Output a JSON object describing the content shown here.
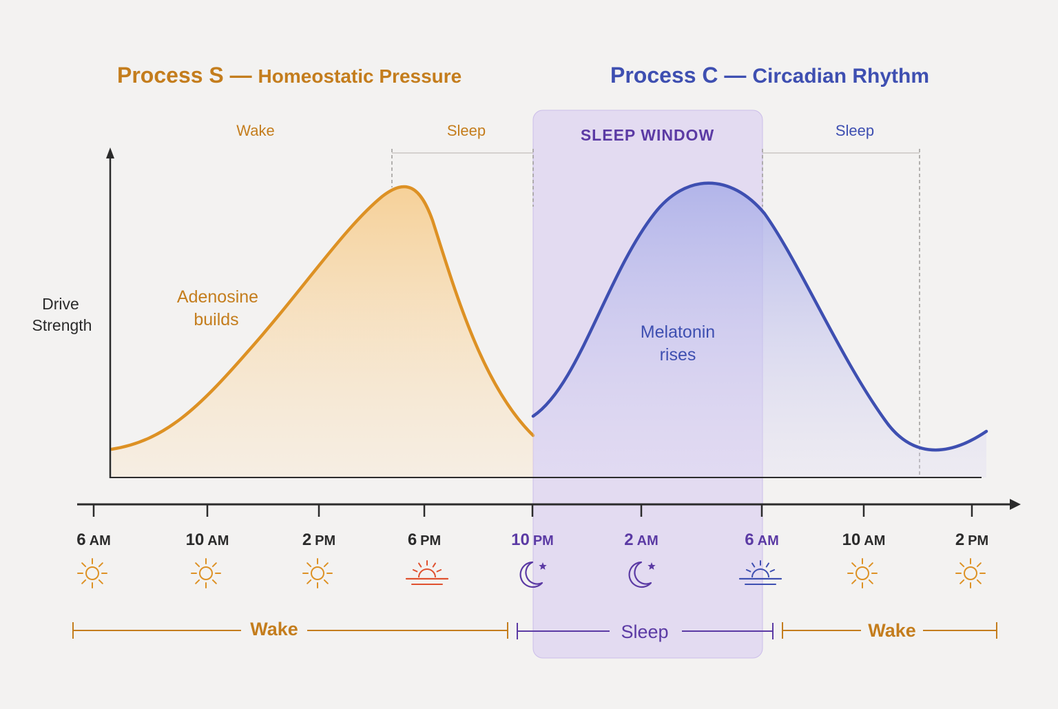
{
  "titles": {
    "process_s": {
      "name": "Process S",
      "dash": "—",
      "subtitle": "Homeostatic Pressure"
    },
    "process_c": {
      "name": "Process C",
      "dash": "—",
      "subtitle": "Circadian Rhythm"
    }
  },
  "axis": {
    "ylabel_line1": "Drive",
    "ylabel_line2": "Strength"
  },
  "top_labels": {
    "wake_s": "Wake",
    "sleep_s": "Sleep",
    "sleep_window": "SLEEP WINDOW",
    "sleep_c": "Sleep"
  },
  "annotations": {
    "adenosine_line1": "Adenosine",
    "adenosine_line2": "builds",
    "melatonin_line1": "Melatonin",
    "melatonin_line2": "rises"
  },
  "timeline": [
    {
      "num": "6",
      "unit": "AM",
      "icon": "sun-icon",
      "tone": "day"
    },
    {
      "num": "10",
      "unit": "AM",
      "icon": "sun-icon",
      "tone": "day"
    },
    {
      "num": "2",
      "unit": "PM",
      "icon": "sun-icon",
      "tone": "day"
    },
    {
      "num": "6",
      "unit": "PM",
      "icon": "sunset-icon",
      "tone": "day"
    },
    {
      "num": "10",
      "unit": "PM",
      "icon": "moon-star-icon",
      "tone": "night"
    },
    {
      "num": "2",
      "unit": "AM",
      "icon": "moon-star-icon",
      "tone": "night"
    },
    {
      "num": "6",
      "unit": "AM",
      "icon": "sunrise-icon",
      "tone": "night"
    },
    {
      "num": "10",
      "unit": "AM",
      "icon": "sun-icon",
      "tone": "day"
    },
    {
      "num": "2",
      "unit": "PM",
      "icon": "sun-icon",
      "tone": "day"
    }
  ],
  "bottom_spans": {
    "wake_1": "Wake",
    "sleep": "Sleep",
    "wake_2": "Wake"
  },
  "colors": {
    "orange": "#dd9124",
    "orange_text": "#c47d1d",
    "sunset_red": "#e0512f",
    "blue": "#3e4fb1",
    "purple": "#5b3aa4",
    "axis": "#2b2b2b",
    "window_fill": "#d9cdf0"
  }
}
